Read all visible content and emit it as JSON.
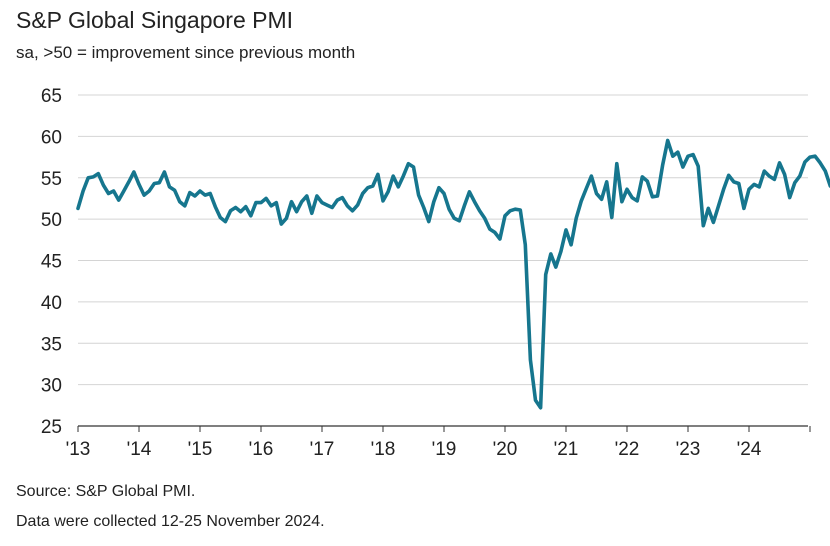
{
  "header": {
    "title": "S&P Global Singapore PMI",
    "subtitle": "sa, >50 = improvement since previous month"
  },
  "footer": {
    "source": "Source: S&P Global PMI.",
    "note": "Data were collected 12-25 November 2024."
  },
  "colors": {
    "series": "#16768e",
    "grid": "#d4d4d4",
    "axis": "#333333"
  },
  "chart_data": {
    "type": "line",
    "title": "S&P Global Singapore PMI",
    "subtitle": "sa, >50 = improvement since previous month",
    "xlabel": "",
    "ylabel": "",
    "ylim": [
      25,
      65
    ],
    "yticks": [
      25,
      30,
      35,
      40,
      45,
      50,
      55,
      60,
      65
    ],
    "xticks": [
      "'13",
      "'14",
      "'15",
      "'16",
      "'17",
      "'18",
      "'19",
      "'20",
      "'21",
      "'22",
      "'23",
      "'24"
    ],
    "grid": "horizontal",
    "legend": "none",
    "start": "2013-01",
    "end": "2024-11",
    "series": [
      {
        "values": [
          51.3,
          53.4,
          55.0,
          55.1,
          55.5,
          54.1,
          53.1,
          53.4,
          52.3,
          53.4,
          54.5,
          55.7,
          54.2,
          52.9,
          53.4,
          54.3,
          54.4,
          55.7,
          53.9,
          53.5,
          52.1,
          51.6,
          53.2,
          52.8,
          53.4,
          52.9,
          53.1,
          51.5,
          50.2,
          49.7,
          51.0,
          51.4,
          50.9,
          51.5,
          50.4,
          52.0,
          52.0,
          52.5,
          51.6,
          52.0,
          49.4,
          50.1,
          52.1,
          50.9,
          52.1,
          52.8,
          50.7,
          52.8,
          52.0,
          51.7,
          51.4,
          52.3,
          52.6,
          51.6,
          51.0,
          51.7,
          53.1,
          53.8,
          54.0,
          55.4,
          52.2,
          53.3,
          55.2,
          53.9,
          55.2,
          56.7,
          56.3,
          52.9,
          51.4,
          49.7,
          52.1,
          53.8,
          53.1,
          51.2,
          50.1,
          49.8,
          51.6,
          53.3,
          52.1,
          51.0,
          50.1,
          48.8,
          48.4,
          47.6,
          50.4,
          51.0,
          51.2,
          51.1,
          46.9,
          33.0,
          28.1,
          27.2,
          43.3,
          45.8,
          44.2,
          46.1,
          48.7,
          46.9,
          50.1,
          52.2,
          53.7,
          55.2,
          53.1,
          52.4,
          54.5,
          50.2,
          56.7,
          52.1,
          53.6,
          52.6,
          52.2,
          55.1,
          54.6,
          52.7,
          52.8,
          56.5,
          59.5,
          57.6,
          58.1,
          56.3,
          57.6,
          57.8,
          56.4,
          49.2,
          51.3,
          49.6,
          51.6,
          53.6,
          55.3,
          54.5,
          54.3,
          51.3,
          53.6,
          54.2,
          53.9,
          55.8,
          55.2,
          54.8,
          56.8,
          55.4,
          52.6,
          54.4,
          55.2,
          56.9,
          57.5,
          57.6,
          56.8,
          55.8,
          54.0
        ]
      }
    ]
  }
}
